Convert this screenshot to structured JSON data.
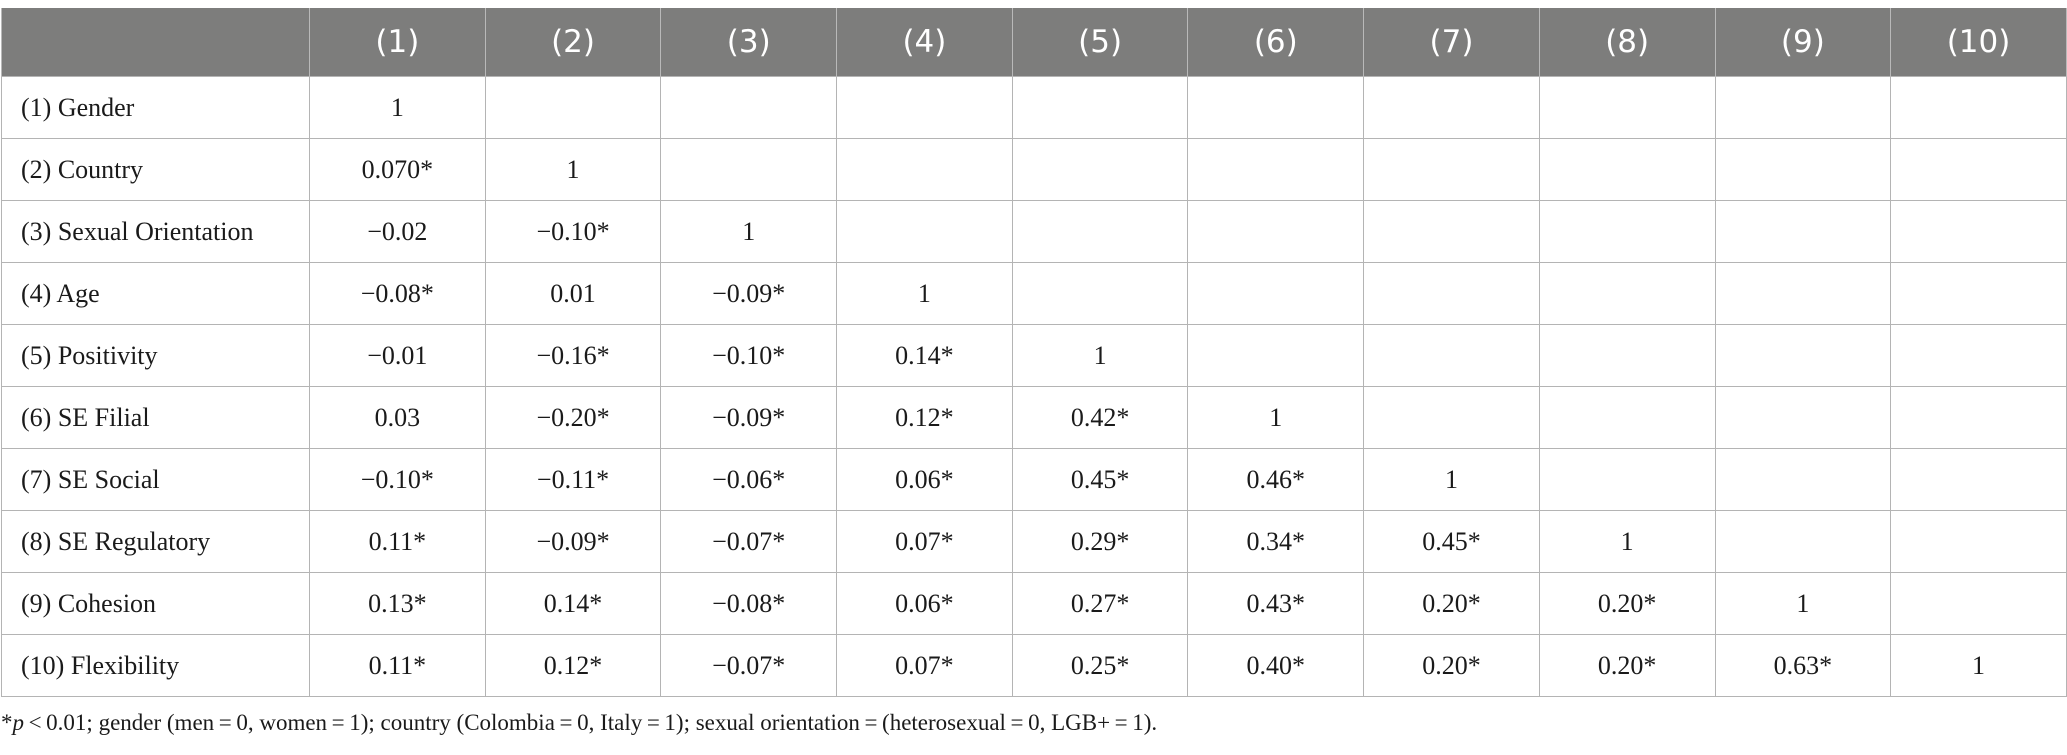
{
  "table": {
    "columns": [
      "",
      "(1)",
      "(2)",
      "(3)",
      "(4)",
      "(5)",
      "(6)",
      "(7)",
      "(8)",
      "(9)",
      "(10)"
    ],
    "rows": [
      {
        "label": "(1) Gender",
        "values": [
          "1",
          "",
          "",
          "",
          "",
          "",
          "",
          "",
          "",
          ""
        ]
      },
      {
        "label": "(2) Country",
        "values": [
          "0.070*",
          "1",
          "",
          "",
          "",
          "",
          "",
          "",
          "",
          ""
        ]
      },
      {
        "label": "(3) Sexual Orientation",
        "values": [
          "−0.02",
          "−0.10*",
          "1",
          "",
          "",
          "",
          "",
          "",
          "",
          ""
        ]
      },
      {
        "label": "(4) Age",
        "values": [
          "−0.08*",
          "0.01",
          "−0.09*",
          "1",
          "",
          "",
          "",
          "",
          "",
          ""
        ]
      },
      {
        "label": "(5) Positivity",
        "values": [
          "−0.01",
          "−0.16*",
          "−0.10*",
          "0.14*",
          "1",
          "",
          "",
          "",
          "",
          ""
        ]
      },
      {
        "label": "(6) SE Filial",
        "values": [
          "0.03",
          "−0.20*",
          "−0.09*",
          "0.12*",
          "0.42*",
          "1",
          "",
          "",
          "",
          ""
        ]
      },
      {
        "label": "(7) SE Social",
        "values": [
          "−0.10*",
          "−0.11*",
          "−0.06*",
          "0.06*",
          "0.45*",
          "0.46*",
          "1",
          "",
          "",
          ""
        ]
      },
      {
        "label": "(8) SE Regulatory",
        "values": [
          "0.11*",
          "−0.09*",
          "−0.07*",
          "0.07*",
          "0.29*",
          "0.34*",
          "0.45*",
          "1",
          "",
          ""
        ]
      },
      {
        "label": "(9) Cohesion",
        "values": [
          "0.13*",
          "0.14*",
          "−0.08*",
          "0.06*",
          "0.27*",
          "0.43*",
          "0.20*",
          "0.20*",
          "1",
          ""
        ]
      },
      {
        "label": "(10) Flexibility",
        "values": [
          "0.11*",
          "0.12*",
          "−0.07*",
          "0.07*",
          "0.25*",
          "0.40*",
          "0.20*",
          "0.20*",
          "0.63*",
          "1"
        ]
      }
    ]
  },
  "footnote": {
    "star": "*",
    "p_symbol": "p",
    "text": " < 0.01; gender (men = 0, women = 1); country (Colombia = 0, Italy = 1); sexual orientation = (heterosexual = 0, LGB+ = 1)."
  }
}
